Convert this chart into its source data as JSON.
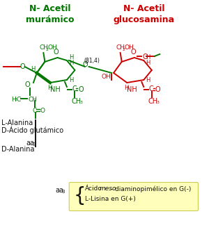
{
  "title_left": "N- Acetil\nmurámico",
  "title_right": "N- Acetil\nglucosamina",
  "green": "#007700",
  "red": "#cc0000",
  "black": "#111111",
  "red_meo": "#cc0000",
  "green_meo": "#007700",
  "bg_color": "#ffffff",
  "box_bg": "#ffffbb",
  "box_edge": "#cccc55",
  "beta14": "(β1,4)",
  "label_lalanina": "L-Alanina",
  "label_dacido": "D-Ácido glutámico",
  "label_aa3": "aa",
  "label_dalanina": "D-Alanina",
  "box_line1a": "Ácido",
  "box_line1b": "meso",
  "box_line1c": " - diaminopimélico en G(-)",
  "box_line2": "L-Lisina en G(+)"
}
